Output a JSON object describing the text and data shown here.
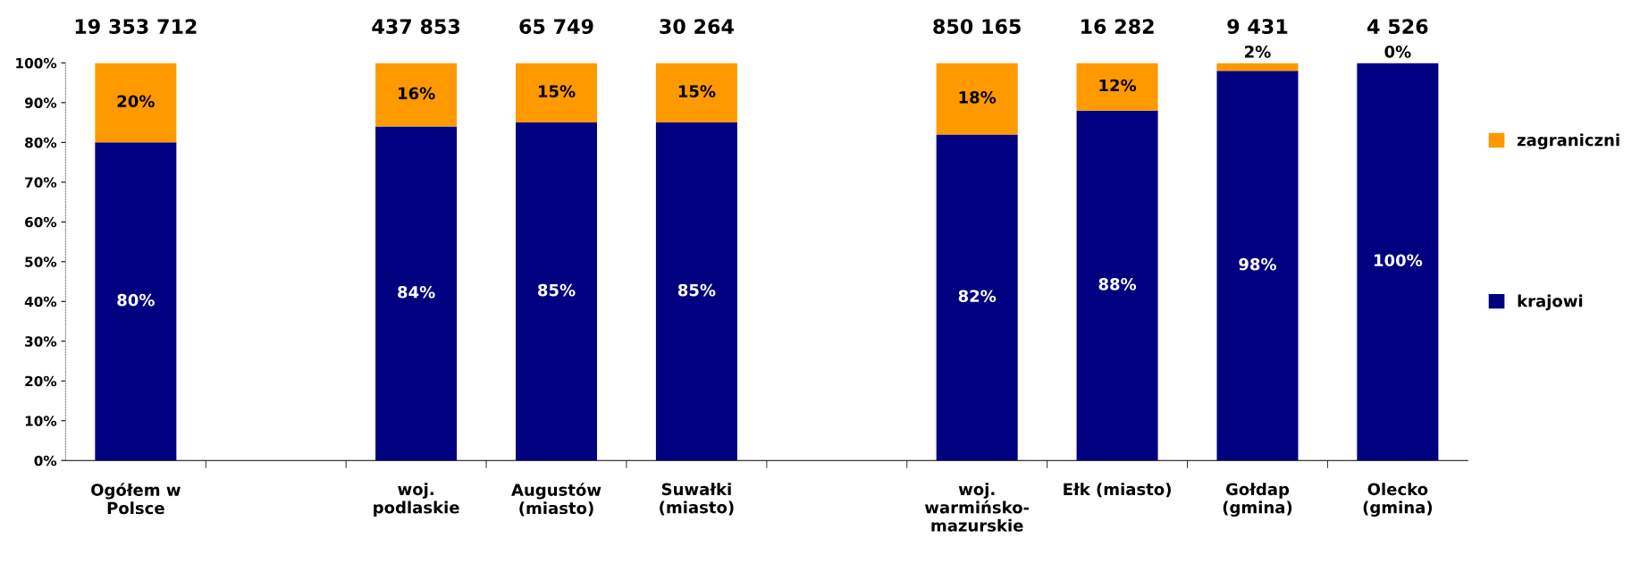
{
  "chart_data": {
    "type": "bar",
    "stacked": true,
    "categories": [
      "Ogółem w\nPolsce",
      null,
      "woj.\npodlaskie",
      "Augustów\n(miasto)",
      "Suwałki\n(miasto)",
      null,
      "woj.\nwarmińsko-\nmazurskie",
      "Ełk (miasto)",
      "Gołdap\n(gmina)",
      "Olecko\n(gmina)"
    ],
    "series": [
      {
        "name": "krajowi",
        "color": "#000080",
        "values": [
          80,
          null,
          84,
          85,
          85,
          null,
          82,
          88,
          98,
          100
        ],
        "value_labels": [
          "80%",
          null,
          "84%",
          "85%",
          "85%",
          null,
          "82%",
          "88%",
          "98%",
          "100%"
        ]
      },
      {
        "name": "zagraniczni",
        "color": "#ff9900",
        "values": [
          20,
          null,
          16,
          15,
          15,
          null,
          18,
          12,
          2,
          0
        ],
        "value_labels": [
          "20%",
          null,
          "16%",
          "15%",
          "15%",
          null,
          "18%",
          "12%",
          "2%",
          "0%"
        ]
      }
    ],
    "annotations": [
      {
        "text": "19 353 712",
        "x": "Ogółem w\nPolsce",
        "y": 100
      },
      {
        "text": "437 853",
        "x": "woj.\npodlaskie",
        "y": 100
      },
      {
        "text": "65 749",
        "x": "Augustów\n(miasto)",
        "y": 100
      },
      {
        "text": "30 264",
        "x": "Suwałki\n(miasto)",
        "y": 100
      },
      {
        "text": "850 165",
        "x": "woj.\nwarmińsko-\nmazurskie",
        "y": 100
      },
      {
        "text": "16 282",
        "x": "Ełk (miasto)",
        "y": 100
      },
      {
        "text": "9 431",
        "x": "Gołdap\n(gmina)",
        "y": 100
      },
      {
        "text": "4 526",
        "x": "Olecko\n(gmina)",
        "y": 100
      }
    ],
    "ylim": [
      0,
      100
    ],
    "yticks": [
      {
        "value": 0,
        "label": "0%"
      },
      {
        "value": 10,
        "label": "10%"
      },
      {
        "value": 20,
        "label": "20%"
      },
      {
        "value": 30,
        "label": "30%"
      },
      {
        "value": 40,
        "label": "40%"
      },
      {
        "value": 50,
        "label": "50%"
      },
      {
        "value": 60,
        "label": "60%"
      },
      {
        "value": 70,
        "label": "70%"
      },
      {
        "value": 80,
        "label": "80%"
      },
      {
        "value": 90,
        "label": "90%"
      },
      {
        "value": 100,
        "label": "100%"
      }
    ],
    "grid": false,
    "legend": "right"
  }
}
